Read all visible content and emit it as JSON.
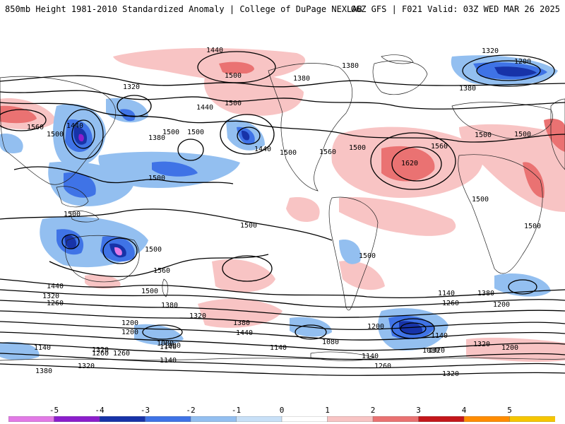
{
  "header": {
    "left_title": "850mb Height 1981-2010 Standardized Anomaly | College of DuPage NEXLAB",
    "right_title": "06Z GFS | F021 Valid: 03Z WED MAR 26 2025"
  },
  "colorbar": {
    "labels": [
      "-5",
      "-4",
      "-3",
      "-2",
      "-1",
      "0",
      "1",
      "2",
      "3",
      "4",
      "5"
    ],
    "colors": [
      "#e27ae6",
      "#8c1ecc",
      "#1733a8",
      "#3f73e6",
      "#93bff0",
      "#c8e0f7",
      "#ffffff",
      "#f8c4c4",
      "#ea7272",
      "#c4161a",
      "#ff8c00",
      "#f6c600"
    ]
  },
  "map": {
    "contour_labels": [
      "1440",
      "1500",
      "1320",
      "1380",
      "1200",
      "1500",
      "1320",
      "1380",
      "1440",
      "1560",
      "1500",
      "1380",
      "1440",
      "1500",
      "1380",
      "1500",
      "1440",
      "1500",
      "1560",
      "1500",
      "1620",
      "1560",
      "1500",
      "1500",
      "1500",
      "1500",
      "1500",
      "1500",
      "1500",
      "1500",
      "1560",
      "1500",
      "1500",
      "1440",
      "1320",
      "1260",
      "1380",
      "1320",
      "1440",
      "1380",
      "1140",
      "1080",
      "1200",
      "1140",
      "1080",
      "1200",
      "1140",
      "1260",
      "1320",
      "1380",
      "1320",
      "1260",
      "1200",
      "1080",
      "1140",
      "1140",
      "1260",
      "1320",
      "1200",
      "1140",
      "1080",
      "1320",
      "1380",
      "1200",
      "1140",
      "1260",
      "1320"
    ]
  }
}
